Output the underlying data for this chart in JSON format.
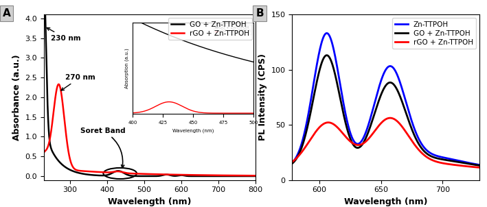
{
  "panel_A": {
    "title_label": "A",
    "xlabel": "Wavelength (nm)",
    "ylabel": "Absorbance (a.u.)",
    "xlim": [
      230,
      800
    ],
    "ylim": [
      -0.1,
      4.1
    ],
    "yticks": [
      0.0,
      0.5,
      1.0,
      1.5,
      2.0,
      2.5,
      3.0,
      3.5,
      4.0
    ],
    "xticks": [
      300,
      400,
      500,
      600,
      700,
      800
    ],
    "legend": [
      "GO + Zn-TTPOH",
      "rGO + Zn-TTPOH"
    ],
    "colors": [
      "black",
      "red"
    ],
    "inset": {
      "xlim": [
        400,
        500
      ],
      "ylim": [
        -0.01,
        0.65
      ],
      "yticks": [
        -0.01,
        0.02
      ],
      "xticks": [
        400,
        425,
        450,
        475,
        500
      ],
      "xlabel": "Wavelength (nm)",
      "ylabel": "Absorption (a.u.)",
      "legend": [
        "GO + Zn-TTPOH",
        "rGO + Zn-TTPOH"
      ],
      "colors": [
        "black",
        "red"
      ]
    }
  },
  "panel_B": {
    "title_label": "B",
    "xlabel": "Wavelength (nm)",
    "ylabel": "PL Intensity (CPS)",
    "xlim": [
      578,
      730
    ],
    "ylim": [
      0,
      150
    ],
    "yticks": [
      0,
      50,
      100,
      150
    ],
    "xticks": [
      600,
      650,
      700
    ],
    "legend": [
      "Zn-TTPOH",
      "GO + Zn-TTPOH",
      "rGO + Zn-TTPOH"
    ],
    "colors": [
      "blue",
      "black",
      "red"
    ]
  }
}
